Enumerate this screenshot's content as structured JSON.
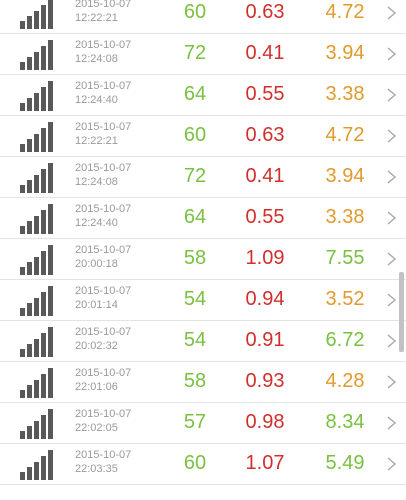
{
  "colors": {
    "green": "#7ac142",
    "red": "#d0302c",
    "orange": "#e09a2e",
    "icon": "#595959",
    "chevron": "#a8a8a8"
  },
  "rows": [
    {
      "date": "2015-10-07",
      "time": "12:22:21",
      "v1": "60",
      "v2": "0.63",
      "v3": "4.72",
      "v3_color": "orange"
    },
    {
      "date": "2015-10-07",
      "time": "12:24:08",
      "v1": "72",
      "v2": "0.41",
      "v3": "3.94",
      "v3_color": "orange"
    },
    {
      "date": "2015-10-07",
      "time": "12:24:40",
      "v1": "64",
      "v2": "0.55",
      "v3": "3.38",
      "v3_color": "orange"
    },
    {
      "date": "2015-10-07",
      "time": "12:22:21",
      "v1": "60",
      "v2": "0.63",
      "v3": "4.72",
      "v3_color": "orange"
    },
    {
      "date": "2015-10-07",
      "time": "12:24:08",
      "v1": "72",
      "v2": "0.41",
      "v3": "3.94",
      "v3_color": "orange"
    },
    {
      "date": "2015-10-07",
      "time": "12:24:40",
      "v1": "64",
      "v2": "0.55",
      "v3": "3.38",
      "v3_color": "orange"
    },
    {
      "date": "2015-10-07",
      "time": "20:00:18",
      "v1": "58",
      "v2": "1.09",
      "v3": "7.55",
      "v3_color": "green"
    },
    {
      "date": "2015-10-07",
      "time": "20:01:14",
      "v1": "54",
      "v2": "0.94",
      "v3": "3.52",
      "v3_color": "orange"
    },
    {
      "date": "2015-10-07",
      "time": "20:02:32",
      "v1": "54",
      "v2": "0.91",
      "v3": "6.72",
      "v3_color": "green"
    },
    {
      "date": "2015-10-07",
      "time": "22:01:06",
      "v1": "58",
      "v2": "0.93",
      "v3": "4.28",
      "v3_color": "orange"
    },
    {
      "date": "2015-10-07",
      "time": "22:02:05",
      "v1": "57",
      "v2": "0.98",
      "v3": "8.34",
      "v3_color": "green"
    },
    {
      "date": "2015-10-07",
      "time": "22:03:35",
      "v1": "60",
      "v2": "1.07",
      "v3": "5.49",
      "v3_color": "green"
    }
  ],
  "icons": {
    "row_icon": "signal-bars-icon",
    "row_action": "chevron-right-icon"
  }
}
